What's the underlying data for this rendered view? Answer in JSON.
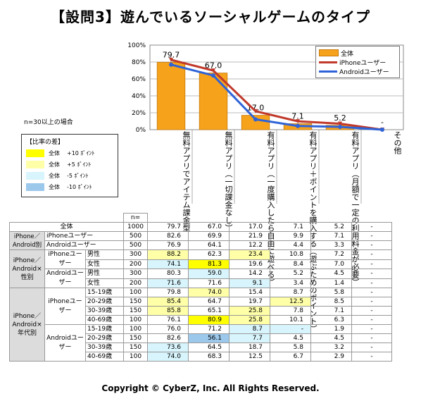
{
  "title": "【設問3】遊んでいるソーシャルゲームのタイプ",
  "note": "n=30以上の場合",
  "ratio_legend": {
    "title": "【比率の差】",
    "items": [
      {
        "label": "全体",
        "value": "+10 ﾎﾟｲﾝﾄ",
        "color": "#ffff00"
      },
      {
        "label": "全体",
        "value": "+5 ﾎﾟｲﾝﾄ",
        "color": "#ffffa8"
      },
      {
        "label": "全体",
        "value": "-5 ﾎﾟｲﾝﾄ",
        "color": "#d8f4fc"
      },
      {
        "label": "全体",
        "value": "-10 ﾎﾟｲﾝﾄ",
        "color": "#9cc8ec"
      }
    ]
  },
  "chart_data": {
    "type": "bar",
    "categories": [
      "無料アプリでアイテム課金型",
      "無料アプリ（一切課金なし）",
      "有料アプリ（一度購入したら自由に遊べる）",
      "有料アプリ＋ポイントを購入する（遊ぶためのポイント）",
      "有料アプリ（月額で一定の利用料金が必要）",
      "その他"
    ],
    "y_ticks": [
      "0%",
      "20%",
      "40%",
      "60%",
      "80%",
      "100%"
    ],
    "ylim": [
      0,
      100
    ],
    "series": [
      {
        "name": "全体",
        "kind": "bar",
        "color": "#f7a21b",
        "values": [
          79.7,
          67.0,
          17.0,
          7.1,
          5.2,
          0
        ]
      },
      {
        "name": "iPhoneユーザー",
        "kind": "line",
        "color": "#c0392b",
        "values": [
          82.6,
          69.9,
          21.9,
          9.9,
          7.1,
          0
        ]
      },
      {
        "name": "Androidユーザー",
        "kind": "line",
        "color": "#2e63d8",
        "values": [
          76.9,
          64.1,
          12.2,
          4.4,
          3.3,
          0
        ]
      }
    ],
    "data_labels": [
      "79.7",
      "67.0",
      "17.0",
      "7.1",
      "5.2",
      "-"
    ]
  },
  "table": {
    "n_header": "n=",
    "rows": [
      {
        "label": "全体",
        "n": "1000",
        "vals": [
          "79.7",
          "67.0",
          "17.0",
          "7.1",
          "5.2",
          "-"
        ],
        "hl": [
          0,
          0,
          0,
          0,
          0,
          0
        ]
      },
      {
        "group": "iPhone／Android別",
        "label": "iPhoneユーザー",
        "n": "500",
        "vals": [
          "82.6",
          "69.9",
          "21.9",
          "9.9",
          "7.1",
          "-"
        ],
        "hl": [
          0,
          0,
          0,
          0,
          0,
          0
        ]
      },
      {
        "label": "Androidユーザー",
        "n": "500",
        "vals": [
          "76.9",
          "64.1",
          "12.2",
          "4.4",
          "3.3",
          "-"
        ],
        "hl": [
          0,
          0,
          0,
          0,
          0,
          0
        ]
      },
      {
        "group": "iPhone／Android×性別",
        "sub": "iPhoneユーザー",
        "label": "男性",
        "n": "300",
        "vals": [
          "88.2",
          "62.3",
          "23.4",
          "10.8",
          "7.2",
          "-"
        ],
        "hl": [
          2,
          0,
          2,
          0,
          0,
          0
        ]
      },
      {
        "label": "女性",
        "n": "200",
        "vals": [
          "74.1",
          "81.3",
          "19.6",
          "8.4",
          "7.0",
          "-"
        ],
        "hl": [
          3,
          1,
          0,
          0,
          0,
          0
        ]
      },
      {
        "sub": "Androidユーザー",
        "label": "男性",
        "n": "300",
        "vals": [
          "80.3",
          "59.0",
          "14.2",
          "5.2",
          "4.5",
          "-"
        ],
        "hl": [
          0,
          3,
          0,
          0,
          0,
          0
        ]
      },
      {
        "label": "女性",
        "n": "200",
        "vals": [
          "71.6",
          "71.6",
          "9.1",
          "3.4",
          "1.4",
          "-"
        ],
        "hl": [
          3,
          0,
          3,
          0,
          0,
          0
        ]
      },
      {
        "group": "iPhone／Android×年代別",
        "sub": "iPhoneユーザー",
        "label": "15-19歳",
        "n": "100",
        "vals": [
          "79.8",
          "74.0",
          "15.4",
          "8.7",
          "5.8",
          "-"
        ],
        "hl": [
          0,
          2,
          0,
          0,
          0,
          0
        ]
      },
      {
        "label": "20-29歳",
        "n": "150",
        "vals": [
          "85.4",
          "64.7",
          "19.7",
          "12.5",
          "8.5",
          "-"
        ],
        "hl": [
          2,
          0,
          0,
          2,
          0,
          0
        ]
      },
      {
        "label": "30-39歳",
        "n": "150",
        "vals": [
          "85.8",
          "65.1",
          "25.8",
          "7.8",
          "7.1",
          "-"
        ],
        "hl": [
          2,
          0,
          2,
          0,
          0,
          0
        ]
      },
      {
        "label": "40-69歳",
        "n": "100",
        "vals": [
          "76.1",
          "80.9",
          "25.8",
          "10.1",
          "6.3",
          "-"
        ],
        "hl": [
          0,
          1,
          2,
          0,
          0,
          0
        ]
      },
      {
        "sub": "Androidユーザー",
        "label": "15-19歳",
        "n": "100",
        "vals": [
          "76.0",
          "71.2",
          "8.7",
          "-",
          "1.9",
          "-"
        ],
        "hl": [
          0,
          0,
          3,
          3,
          0,
          0
        ]
      },
      {
        "label": "20-29歳",
        "n": "150",
        "vals": [
          "82.6",
          "56.1",
          "7.7",
          "4.5",
          "4.5",
          "-"
        ],
        "hl": [
          0,
          4,
          3,
          0,
          0,
          0
        ]
      },
      {
        "label": "30-39歳",
        "n": "150",
        "vals": [
          "73.6",
          "64.5",
          "18.7",
          "5.8",
          "3.2",
          "-"
        ],
        "hl": [
          3,
          0,
          0,
          0,
          0,
          0
        ]
      },
      {
        "label": "40-69歳",
        "n": "100",
        "vals": [
          "74.0",
          "68.3",
          "12.5",
          "6.7",
          "2.9",
          "-"
        ],
        "hl": [
          3,
          0,
          0,
          0,
          0,
          0
        ]
      }
    ]
  },
  "copyright": "Copyright © CyberZ, Inc. All Rights Reserved."
}
